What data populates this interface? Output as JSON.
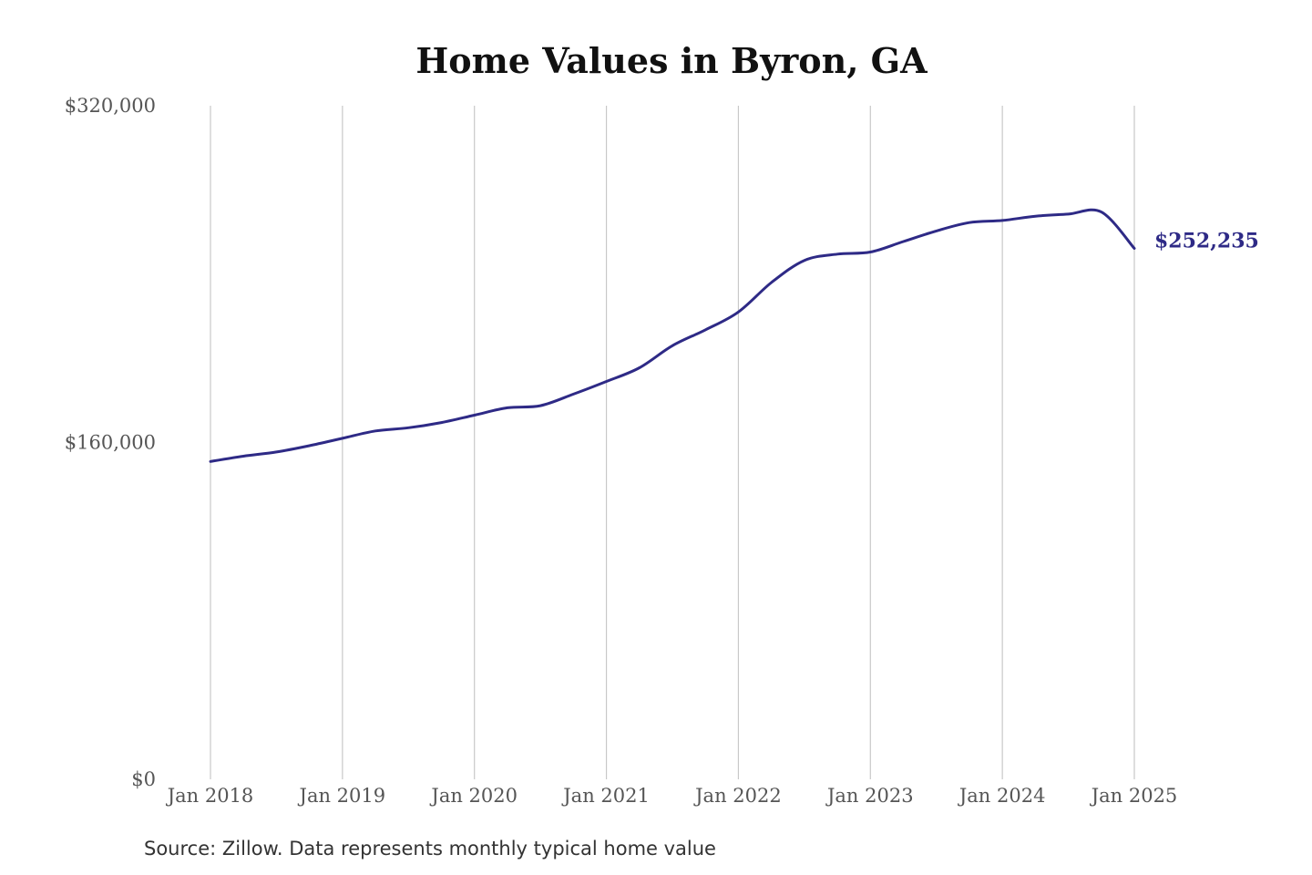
{
  "colors": {
    "series": "#2e2a86",
    "grid": "#c8c8c8",
    "title": "#111111",
    "tick_text": "#555555",
    "background": "#ffffff"
  },
  "source_note": "Source: Zillow. Data represents monthly typical home value",
  "end_label": "$252,235",
  "chart_data": {
    "type": "line",
    "title": "Home Values in Byron, GA",
    "xlabel": "",
    "ylabel": "",
    "ylim": [
      0,
      320000
    ],
    "xlim": [
      "2018-01",
      "2025-01"
    ],
    "grid": "vertical lines at each January",
    "y_ticks": [
      {
        "value": 0,
        "label": "$0"
      },
      {
        "value": 160000,
        "label": "$160,000"
      },
      {
        "value": 320000,
        "label": "$320,000"
      }
    ],
    "x_ticks": [
      {
        "value": "2018-01",
        "label": "Jan 2018"
      },
      {
        "value": "2019-01",
        "label": "Jan 2019"
      },
      {
        "value": "2020-01",
        "label": "Jan 2020"
      },
      {
        "value": "2021-01",
        "label": "Jan 2021"
      },
      {
        "value": "2022-01",
        "label": "Jan 2022"
      },
      {
        "value": "2023-01",
        "label": "Jan 2023"
      },
      {
        "value": "2024-01",
        "label": "Jan 2024"
      },
      {
        "value": "2025-01",
        "label": "Jan 2025"
      }
    ],
    "series": [
      {
        "points": [
          {
            "x": "2018-01",
            "y": 151000
          },
          {
            "x": "2018-04",
            "y": 153500
          },
          {
            "x": "2018-07",
            "y": 155500
          },
          {
            "x": "2018-10",
            "y": 158500
          },
          {
            "x": "2019-01",
            "y": 162000
          },
          {
            "x": "2019-04",
            "y": 165500
          },
          {
            "x": "2019-07",
            "y": 167000
          },
          {
            "x": "2019-10",
            "y": 169500
          },
          {
            "x": "2020-01",
            "y": 173000
          },
          {
            "x": "2020-04",
            "y": 176500
          },
          {
            "x": "2020-07",
            "y": 177500
          },
          {
            "x": "2020-10",
            "y": 183000
          },
          {
            "x": "2021-01",
            "y": 189000
          },
          {
            "x": "2021-04",
            "y": 195500
          },
          {
            "x": "2021-07",
            "y": 206000
          },
          {
            "x": "2021-10",
            "y": 213500
          },
          {
            "x": "2022-01",
            "y": 222000
          },
          {
            "x": "2022-04",
            "y": 236000
          },
          {
            "x": "2022-07",
            "y": 246500
          },
          {
            "x": "2022-10",
            "y": 249500
          },
          {
            "x": "2023-01",
            "y": 250500
          },
          {
            "x": "2023-04",
            "y": 255500
          },
          {
            "x": "2023-07",
            "y": 260500
          },
          {
            "x": "2023-10",
            "y": 264500
          },
          {
            "x": "2024-01",
            "y": 265500
          },
          {
            "x": "2024-04",
            "y": 267500
          },
          {
            "x": "2024-07",
            "y": 268500
          },
          {
            "x": "2024-10",
            "y": 269500
          },
          {
            "x": "2025-01",
            "y": 252235
          }
        ]
      }
    ]
  }
}
